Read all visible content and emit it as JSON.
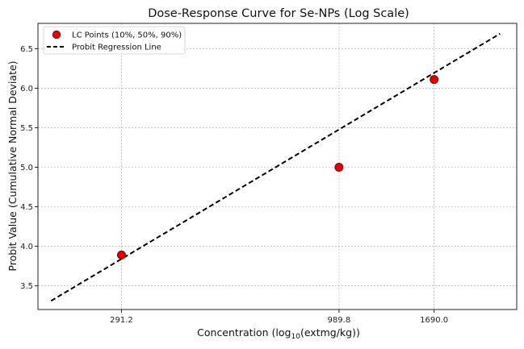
{
  "chart_data": {
    "type": "scatter",
    "title": "Dose-Response Curve for Se-NPs (Log Scale)",
    "xlabel_prefix": "Concentration (log",
    "xlabel_sub": "10",
    "xlabel_suffix": "(extmg/kg))",
    "ylabel": "Probit Value (Cumulative Normal Deviate)",
    "x_scale": "log",
    "xlim": [
      182,
      2690
    ],
    "ylim": [
      3.2,
      6.82
    ],
    "x_ticks": [
      291.2,
      989.8,
      1690.0
    ],
    "x_tick_labels": [
      "291.2",
      "989.8",
      "1690.0"
    ],
    "y_ticks": [
      3.5,
      4.0,
      4.5,
      5.0,
      5.5,
      6.0,
      6.5
    ],
    "y_tick_labels": [
      "3.5",
      "4.0",
      "4.5",
      "5.0",
      "5.5",
      "6.0",
      "6.5"
    ],
    "grid": true,
    "legend_position": "top-left",
    "series": [
      {
        "name": "LC Points (10%, 50%, 90%)",
        "kind": "scatter",
        "color": "#dd0000",
        "edge_color": "#8b0000",
        "x": [
          291.2,
          989.8,
          1690.0
        ],
        "y": [
          3.89,
          5.0,
          6.11
        ]
      },
      {
        "name": "Probit Regression Line",
        "kind": "line",
        "style": "dashed",
        "color": "#000000",
        "x": [
          196,
          2450
        ],
        "y": [
          3.31,
          6.69
        ]
      }
    ]
  }
}
